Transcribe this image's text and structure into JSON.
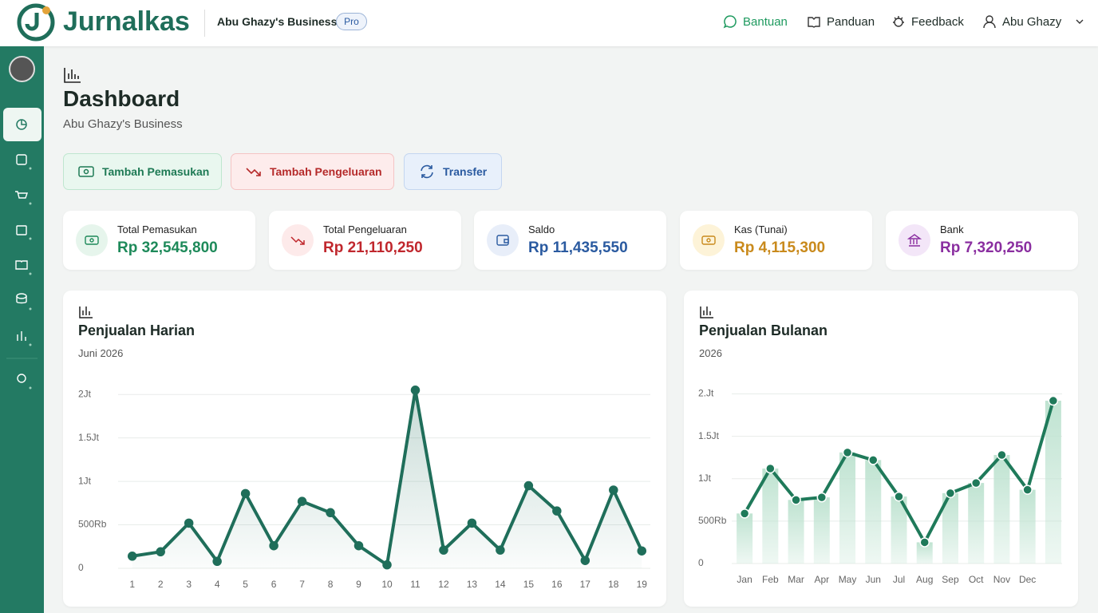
{
  "header": {
    "logo": "Jurnalkas",
    "business": "Abu Ghazy's Business",
    "plan": "Pro",
    "nav": [
      "Bantuan",
      "Panduan",
      "Feedback"
    ],
    "user": "Abu Ghazy"
  },
  "page": {
    "title": "Dashboard",
    "subtitle": "Abu Ghazy's Business"
  },
  "actions": [
    "Tambah Pemasukan",
    "Tambah Pengeluaran",
    "Transfer"
  ],
  "stats": [
    {
      "label": "Total Pemasukan",
      "value": "Rp 32,545,800"
    },
    {
      "label": "Total Pengeluaran",
      "value": "Rp 21,110,250"
    },
    {
      "label": "Saldo",
      "value": "Rp 11,435,550"
    },
    {
      "label": "Kas (Tunai)",
      "value": "Rp 4,115,300"
    },
    {
      "label": "Bank",
      "value": "Rp 7,320,250"
    }
  ],
  "chart_data": [
    {
      "type": "line",
      "title": "Penjualan Harian",
      "subtitle": "Juni 2026",
      "color": "#1f6e5a",
      "grid": true,
      "categories": [
        "1",
        "2",
        "3",
        "4",
        "5",
        "6",
        "7",
        "8",
        "9",
        "10",
        "11",
        "12",
        "13",
        "14",
        "15",
        "16",
        "17",
        "18",
        "19"
      ],
      "values": [
        140000,
        190000,
        520000,
        80000,
        860000,
        260000,
        770000,
        640000,
        260000,
        40000,
        2050000,
        210000,
        520000,
        210000,
        950000,
        660000,
        90000,
        900000,
        200000
      ],
      "ylim": [
        0,
        2250000
      ],
      "yticks": [
        {
          "value": 0,
          "label": "0"
        },
        {
          "value": 500000,
          "label": "500Rb"
        },
        {
          "value": 1000000,
          "label": "1Jt"
        },
        {
          "value": 1500000,
          "label": "1.5Jt"
        },
        {
          "value": 2000000,
          "label": "2Jt"
        }
      ]
    },
    {
      "type": "combo",
      "title": "Penjualan Bulanan",
      "subtitle": "2026",
      "color": "#1f7a5a",
      "bar_color": "#bfe3d1",
      "grid": true,
      "categories": [
        "Jan",
        "Feb",
        "Mar",
        "Apr",
        "May",
        "Jun",
        "Jul",
        "Aug",
        "Sep",
        "Oct",
        "Nov",
        "Dec",
        null
      ],
      "values": [
        590000,
        1120000,
        750000,
        780000,
        1310000,
        1220000,
        790000,
        250000,
        830000,
        950000,
        1280000,
        870000,
        1920000
      ],
      "ylim": [
        0,
        2250000
      ],
      "yticks": [
        {
          "value": 0,
          "label": "0"
        },
        {
          "value": 500000,
          "label": "500Rb"
        },
        {
          "value": 1000000,
          "label": "1Jt"
        },
        {
          "value": 1500000,
          "label": "1.5Jt"
        },
        {
          "value": 2000000,
          "label": "2.Jt"
        }
      ]
    }
  ]
}
